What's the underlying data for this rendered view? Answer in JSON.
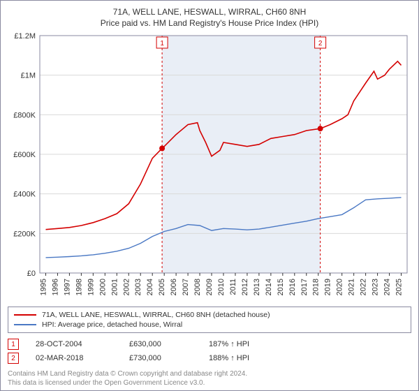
{
  "title_line1": "71A, WELL LANE, HESWALL, WIRRAL, CH60 8NH",
  "title_line2": "Price paid vs. HM Land Registry's House Price Index (HPI)",
  "chart": {
    "type": "line",
    "background_color": "#ffffff",
    "grid_color": "#d9d9d9",
    "border_color": "#8a8aa0",
    "shaded_band_color": "#e9eef6",
    "shaded_band_xstart": 2004.82,
    "shaded_band_xend": 2018.17,
    "xlim": [
      1994.5,
      2025.5
    ],
    "ylim": [
      0,
      1200000
    ],
    "xticks": [
      1995,
      1996,
      1997,
      1998,
      1999,
      2000,
      2001,
      2002,
      2003,
      2004,
      2005,
      2006,
      2007,
      2008,
      2009,
      2010,
      2011,
      2012,
      2013,
      2014,
      2015,
      2016,
      2017,
      2018,
      2019,
      2020,
      2021,
      2022,
      2023,
      2024,
      2025
    ],
    "yticks": [
      0,
      200000,
      400000,
      600000,
      800000,
      1000000,
      1200000
    ],
    "yticklabels": [
      "£0",
      "£200K",
      "£400K",
      "£600K",
      "£800K",
      "£1M",
      "£1.2M"
    ],
    "axis_fontsize": 11,
    "series": [
      {
        "id": "subject",
        "label": "71A, WELL LANE, HESWALL, WIRRAL, CH60 8NH (detached house)",
        "color": "#d40000",
        "line_width": 1.6,
        "points": [
          [
            1995,
            220000
          ],
          [
            1996,
            225000
          ],
          [
            1997,
            230000
          ],
          [
            1998,
            240000
          ],
          [
            1999,
            255000
          ],
          [
            2000,
            275000
          ],
          [
            2001,
            300000
          ],
          [
            2002,
            350000
          ],
          [
            2003,
            450000
          ],
          [
            2004,
            580000
          ],
          [
            2004.82,
            630000
          ],
          [
            2005,
            640000
          ],
          [
            2006,
            700000
          ],
          [
            2007,
            750000
          ],
          [
            2007.8,
            760000
          ],
          [
            2008,
            720000
          ],
          [
            2008.5,
            660000
          ],
          [
            2009,
            590000
          ],
          [
            2009.7,
            620000
          ],
          [
            2010,
            660000
          ],
          [
            2011,
            650000
          ],
          [
            2012,
            640000
          ],
          [
            2013,
            650000
          ],
          [
            2014,
            680000
          ],
          [
            2015,
            690000
          ],
          [
            2016,
            700000
          ],
          [
            2017,
            720000
          ],
          [
            2018.17,
            730000
          ],
          [
            2019,
            750000
          ],
          [
            2020,
            780000
          ],
          [
            2020.5,
            800000
          ],
          [
            2021,
            870000
          ],
          [
            2022,
            960000
          ],
          [
            2022.7,
            1020000
          ],
          [
            2023,
            980000
          ],
          [
            2023.6,
            1000000
          ],
          [
            2024,
            1030000
          ],
          [
            2024.7,
            1070000
          ],
          [
            2025,
            1050000
          ]
        ]
      },
      {
        "id": "hpi",
        "label": "HPI: Average price, detached house, Wirral",
        "color": "#4a78c4",
        "line_width": 1.4,
        "points": [
          [
            1995,
            78000
          ],
          [
            1996,
            80000
          ],
          [
            1997,
            83000
          ],
          [
            1998,
            87000
          ],
          [
            1999,
            92000
          ],
          [
            2000,
            100000
          ],
          [
            2001,
            110000
          ],
          [
            2002,
            125000
          ],
          [
            2003,
            150000
          ],
          [
            2004,
            185000
          ],
          [
            2005,
            210000
          ],
          [
            2006,
            225000
          ],
          [
            2007,
            245000
          ],
          [
            2008,
            240000
          ],
          [
            2009,
            215000
          ],
          [
            2010,
            225000
          ],
          [
            2011,
            222000
          ],
          [
            2012,
            218000
          ],
          [
            2013,
            222000
          ],
          [
            2014,
            232000
          ],
          [
            2015,
            242000
          ],
          [
            2016,
            252000
          ],
          [
            2017,
            262000
          ],
          [
            2018,
            275000
          ],
          [
            2019,
            285000
          ],
          [
            2020,
            295000
          ],
          [
            2021,
            330000
          ],
          [
            2022,
            370000
          ],
          [
            2023,
            375000
          ],
          [
            2024,
            378000
          ],
          [
            2025,
            382000
          ]
        ]
      }
    ],
    "sale_markers": [
      {
        "num": "1",
        "x": 2004.82,
        "y": 630000,
        "badge_color": "#d40000"
      },
      {
        "num": "2",
        "x": 2018.17,
        "y": 730000,
        "badge_color": "#d40000"
      }
    ],
    "vline_color": "#d40000",
    "vline_dash": "3,3"
  },
  "legend": {
    "items": [
      {
        "color": "#d40000",
        "label": "71A, WELL LANE, HESWALL, WIRRAL, CH60 8NH (detached house)"
      },
      {
        "color": "#4a78c4",
        "label": "HPI: Average price, detached house, Wirral"
      }
    ]
  },
  "sales_table": {
    "rows": [
      {
        "num": "1",
        "date": "28-OCT-2004",
        "price": "£630,000",
        "delta": "187% ↑ HPI",
        "badge_color": "#d40000"
      },
      {
        "num": "2",
        "date": "02-MAR-2018",
        "price": "£730,000",
        "delta": "188% ↑ HPI",
        "badge_color": "#d40000"
      }
    ]
  },
  "footer": {
    "line1": "Contains HM Land Registry data © Crown copyright and database right 2024.",
    "line2": "This data is licensed under the Open Government Licence v3.0."
  }
}
